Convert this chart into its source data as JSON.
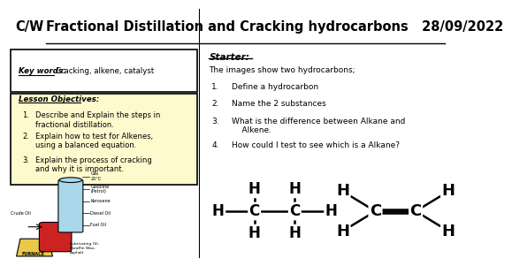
{
  "title_cw": "C/W",
  "title_main": "Fractional Distillation and Cracking hydrocarbons   28/09/2022",
  "header_bg": "#d0d0d0",
  "objectives": [
    "Describe and Explain the steps in\nfractional distillation.",
    "Explain how to test for Alkenes,\nusing a balanced equation.",
    "Explain the process of cracking\nand why it is important."
  ],
  "objectives_bg": "#fffacd",
  "starter_items": [
    "Define a hydrocarbon",
    "Name the 2 substances",
    "What is the difference between Alkane and\n    Alkene.",
    "How could I test to see which is a Alkane?"
  ],
  "starter_bg": "#e8f0e0",
  "body_bg": "#ffffff"
}
